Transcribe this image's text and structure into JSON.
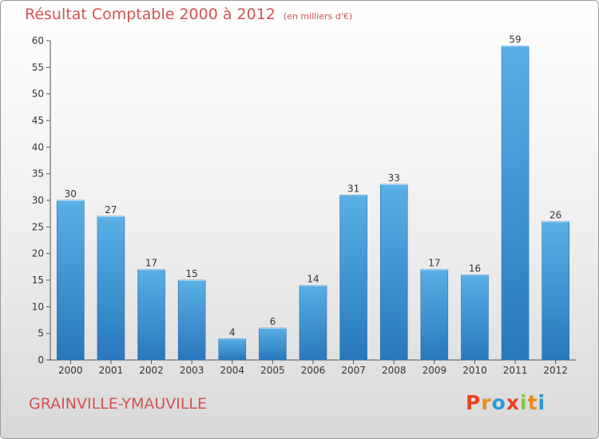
{
  "colors": {
    "bar": "#3a92d6",
    "bar_light": "#5aafe6",
    "bar_dark": "#2878bb",
    "title": "#d35353",
    "axis_text": "#333333"
  },
  "logo": {
    "letters": [
      "P",
      "r",
      "o",
      "x",
      "i",
      "t",
      "i"
    ],
    "colors": [
      "#e8421f",
      "#e98b1b",
      "#2a9bd6",
      "#e8421f",
      "#8cc23f",
      "#e98b1b",
      "#2a9bd6"
    ]
  },
  "chart_data": {
    "type": "bar",
    "title": "Résultat Comptable 2000 à 2012",
    "subtitle": "(en milliers d'€)",
    "footer_label": "GRAINVILLE-YMAUVILLE",
    "categories": [
      "2000",
      "2001",
      "2002",
      "2003",
      "2004",
      "2005",
      "2006",
      "2007",
      "2008",
      "2009",
      "2010",
      "2011",
      "2012"
    ],
    "values": [
      30,
      27,
      17,
      15,
      4,
      6,
      14,
      31,
      33,
      17,
      16,
      59,
      26
    ],
    "ylim": [
      0,
      60
    ],
    "yticks": [
      0,
      5,
      10,
      15,
      20,
      25,
      30,
      35,
      40,
      45,
      50,
      55,
      60
    ],
    "xlabel": "",
    "ylabel": "",
    "grid": false
  }
}
